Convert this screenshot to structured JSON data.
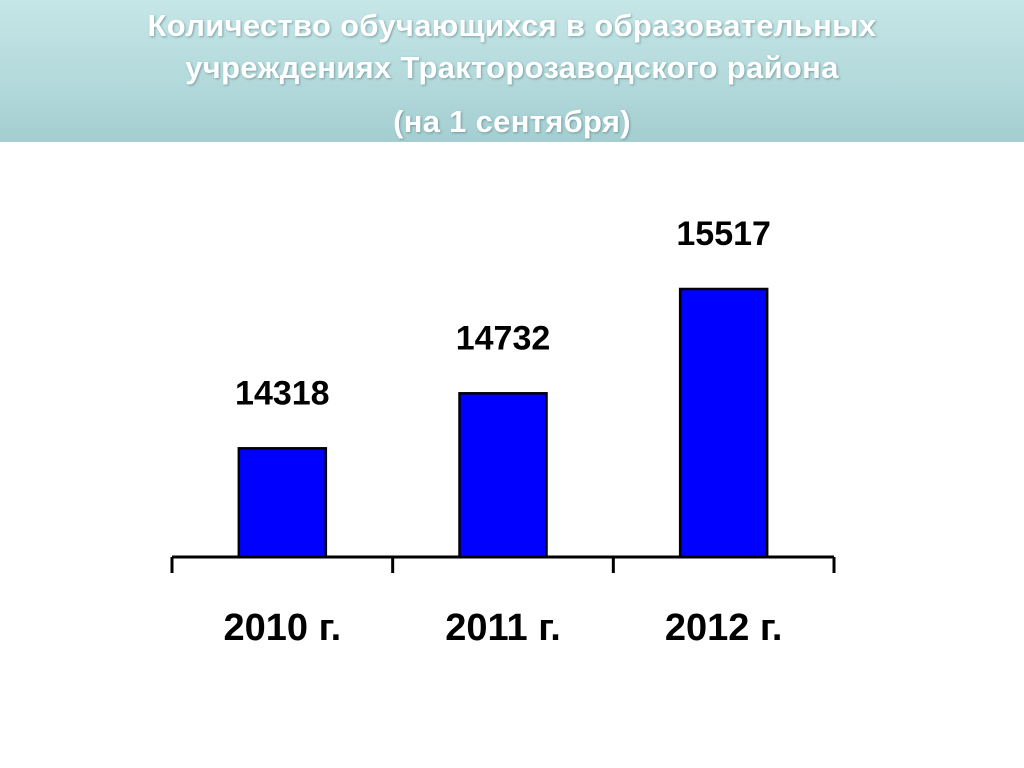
{
  "header": {
    "title_line_1": "Количество обучающихся в образовательных",
    "title_line_2": "учреждениях Тракторозаводского района",
    "subtitle": "(на 1 сентября)"
  },
  "colors": {
    "bar_fill": "#0000ff",
    "bar_stroke": "#000000",
    "axis": "#000000"
  },
  "chart_data": {
    "type": "bar",
    "title": "Количество обучающихся в образовательных учреждениях Тракторозаводского района",
    "subtitle": "(на 1 сентября)",
    "categories": [
      "2010 г.",
      "2011 г.",
      "2012 г."
    ],
    "values": [
      14318,
      14732,
      15517
    ],
    "value_labels": [
      "14318",
      "14732",
      "15517"
    ],
    "xlabel": "",
    "ylabel": "",
    "ylim": [
      13500,
      15800
    ],
    "grid": false,
    "legend": "none"
  }
}
